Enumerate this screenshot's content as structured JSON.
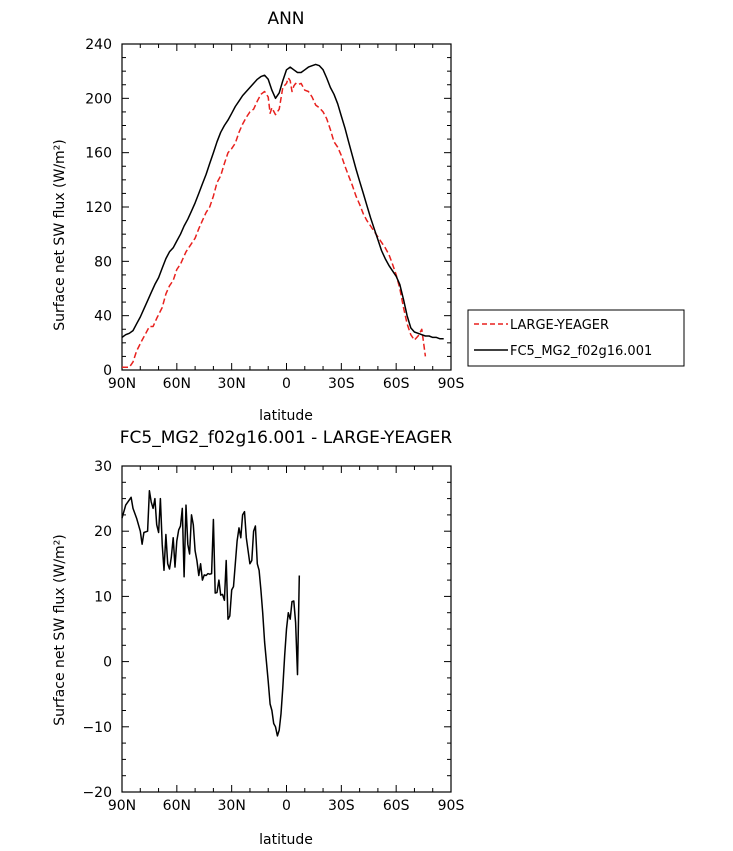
{
  "chart_data": [
    {
      "type": "line",
      "title": "ANN",
      "xlabel": "latitude",
      "ylabel": "Surface net SW flux (W/m²)",
      "xlim": [
        90,
        -90
      ],
      "ylim": [
        0,
        240
      ],
      "xticks": [
        90,
        60,
        30,
        0,
        -30,
        -60,
        -90
      ],
      "xticklabels": [
        "90N",
        "60N",
        "30N",
        "0",
        "30S",
        "60S",
        "90S"
      ],
      "yticks": [
        0,
        40,
        80,
        120,
        160,
        200,
        240
      ],
      "yticklabels": [
        "0",
        "40",
        "80",
        "120",
        "160",
        "200",
        "240"
      ],
      "grid": false,
      "legend": "right",
      "series": [
        {
          "name": "LARGE-YEAGER",
          "color": "#e8211e",
          "dash": "dashed",
          "points": [
            [
              90,
              2
            ],
            [
              86,
              2
            ],
            [
              84,
              6
            ],
            [
              82,
              14
            ],
            [
              79,
              22
            ],
            [
              77,
              27
            ],
            [
              75,
              32
            ],
            [
              73,
              32
            ],
            [
              71,
              38
            ],
            [
              68,
              46
            ],
            [
              66,
              56
            ],
            [
              64,
              62
            ],
            [
              62,
              66
            ],
            [
              60,
              74
            ],
            [
              58,
              78
            ],
            [
              55,
              87
            ],
            [
              53,
              91
            ],
            [
              50,
              97
            ],
            [
              48,
              104
            ],
            [
              46,
              110
            ],
            [
              44,
              116
            ],
            [
              42,
              120
            ],
            [
              40,
              128
            ],
            [
              38,
              138
            ],
            [
              36,
              143
            ],
            [
              34,
              152
            ],
            [
              32,
              160
            ],
            [
              30,
              163
            ],
            [
              28,
              167
            ],
            [
              26,
              175
            ],
            [
              24,
              181
            ],
            [
              22,
              186
            ],
            [
              20,
              190
            ],
            [
              18,
              192
            ],
            [
              16,
              198
            ],
            [
              14,
              203
            ],
            [
              12,
              205
            ],
            [
              10,
              201
            ],
            [
              9,
              189
            ],
            [
              8,
              193
            ],
            [
              6,
              188
            ],
            [
              4,
              192
            ],
            [
              2,
              208
            ],
            [
              0,
              211
            ],
            [
              -1,
              215
            ],
            [
              -2,
              213
            ],
            [
              -3,
              205
            ],
            [
              -4,
              209
            ],
            [
              -5,
              211
            ],
            [
              -6,
              210
            ],
            [
              -8,
              211
            ],
            [
              -10,
              206
            ],
            [
              -12,
              205
            ],
            [
              -14,
              201
            ],
            [
              -16,
              195
            ],
            [
              -18,
              193
            ],
            [
              -20,
              190
            ],
            [
              -22,
              185
            ],
            [
              -24,
              177
            ],
            [
              -26,
              168
            ],
            [
              -28,
              164
            ],
            [
              -30,
              158
            ],
            [
              -32,
              150
            ],
            [
              -34,
              143
            ],
            [
              -36,
              136
            ],
            [
              -38,
              128
            ],
            [
              -40,
              122
            ],
            [
              -42,
              115
            ],
            [
              -44,
              110
            ],
            [
              -46,
              106
            ],
            [
              -48,
              102
            ],
            [
              -50,
              98
            ],
            [
              -52,
              94
            ],
            [
              -54,
              90
            ],
            [
              -56,
              85
            ],
            [
              -58,
              78
            ],
            [
              -60,
              70
            ],
            [
              -62,
              60
            ],
            [
              -64,
              46
            ],
            [
              -66,
              34
            ],
            [
              -68,
              26
            ],
            [
              -70,
              22
            ],
            [
              -72,
              25
            ],
            [
              -74,
              30
            ],
            [
              -75,
              20
            ],
            [
              -76,
              10
            ]
          ]
        },
        {
          "name": "FC5_MG2_f02g16.001",
          "color": "#000000",
          "dash": "solid",
          "points": [
            [
              90,
              24
            ],
            [
              88,
              26
            ],
            [
              86,
              27
            ],
            [
              84,
              29
            ],
            [
              82,
              34
            ],
            [
              80,
              39
            ],
            [
              78,
              45
            ],
            [
              76,
              51
            ],
            [
              74,
              57
            ],
            [
              72,
              63
            ],
            [
              70,
              68
            ],
            [
              68,
              75
            ],
            [
              66,
              82
            ],
            [
              64,
              87
            ],
            [
              62,
              90
            ],
            [
              60,
              95
            ],
            [
              58,
              100
            ],
            [
              56,
              106
            ],
            [
              54,
              111
            ],
            [
              52,
              117
            ],
            [
              50,
              123
            ],
            [
              48,
              130
            ],
            [
              46,
              137
            ],
            [
              44,
              144
            ],
            [
              42,
              152
            ],
            [
              40,
              160
            ],
            [
              38,
              168
            ],
            [
              36,
              175
            ],
            [
              34,
              180
            ],
            [
              32,
              184
            ],
            [
              30,
              189
            ],
            [
              28,
              194
            ],
            [
              26,
              198
            ],
            [
              24,
              202
            ],
            [
              22,
              205
            ],
            [
              20,
              208
            ],
            [
              18,
              211
            ],
            [
              16,
              214
            ],
            [
              14,
              216
            ],
            [
              12,
              217
            ],
            [
              10,
              214
            ],
            [
              8,
              206
            ],
            [
              6,
              200
            ],
            [
              4,
              204
            ],
            [
              2,
              213
            ],
            [
              0,
              221
            ],
            [
              -2,
              223
            ],
            [
              -4,
              221
            ],
            [
              -6,
              219
            ],
            [
              -8,
              219
            ],
            [
              -10,
              221
            ],
            [
              -12,
              223
            ],
            [
              -14,
              224
            ],
            [
              -16,
              225
            ],
            [
              -18,
              224
            ],
            [
              -20,
              221
            ],
            [
              -22,
              215
            ],
            [
              -24,
              208
            ],
            [
              -26,
              203
            ],
            [
              -28,
              196
            ],
            [
              -30,
              187
            ],
            [
              -32,
              178
            ],
            [
              -34,
              168
            ],
            [
              -36,
              158
            ],
            [
              -38,
              148
            ],
            [
              -40,
              139
            ],
            [
              -42,
              130
            ],
            [
              -44,
              121
            ],
            [
              -46,
              112
            ],
            [
              -48,
              104
            ],
            [
              -50,
              96
            ],
            [
              -52,
              88
            ],
            [
              -54,
              82
            ],
            [
              -56,
              77
            ],
            [
              -58,
              73
            ],
            [
              -60,
              69
            ],
            [
              -62,
              63
            ],
            [
              -64,
              52
            ],
            [
              -66,
              40
            ],
            [
              -68,
              31
            ],
            [
              -70,
              28
            ],
            [
              -72,
              27
            ],
            [
              -74,
              26
            ],
            [
              -76,
              25
            ],
            [
              -78,
              25
            ],
            [
              -80,
              24
            ],
            [
              -82,
              24
            ],
            [
              -84,
              23
            ],
            [
              -86,
              23
            ]
          ]
        }
      ]
    },
    {
      "type": "line",
      "title": "FC5_MG2_f02g16.001 - LARGE-YEAGER",
      "xlabel": "latitude",
      "ylabel": "Surface net SW flux (W/m²)",
      "xlim": [
        90,
        -90
      ],
      "ylim": [
        -20,
        30
      ],
      "xticks": [
        90,
        60,
        30,
        0,
        -30,
        -60,
        -90
      ],
      "xticklabels": [
        "90N",
        "60N",
        "30N",
        "0",
        "30S",
        "60S",
        "90S"
      ],
      "yticks": [
        -20,
        -10,
        0,
        10,
        20,
        30
      ],
      "yticklabels": [
        "−20",
        "−10",
        "0",
        "10",
        "20",
        "30"
      ],
      "grid": false,
      "series": [
        {
          "color": "#000000",
          "dash": "solid",
          "points": [
            [
              90,
              22
            ],
            [
              88,
              24
            ],
            [
              86,
              24.8
            ],
            [
              85,
              25.2
            ],
            [
              84,
              23.5
            ],
            [
              82,
              22
            ],
            [
              80,
              20
            ],
            [
              79,
              18
            ],
            [
              78,
              19.8
            ],
            [
              76,
              20
            ],
            [
              75,
              26.2
            ],
            [
              74,
              24.5
            ],
            [
              73,
              23.5
            ],
            [
              72,
              25
            ],
            [
              71,
              21
            ],
            [
              70,
              19.8
            ],
            [
              69,
              25
            ],
            [
              68,
              18
            ],
            [
              67,
              14
            ],
            [
              66,
              19.5
            ],
            [
              65,
              15
            ],
            [
              64,
              14.2
            ],
            [
              63,
              16
            ],
            [
              62,
              19
            ],
            [
              61,
              14.5
            ],
            [
              60,
              18.5
            ],
            [
              59,
              20.2
            ],
            [
              58,
              20.8
            ],
            [
              57,
              23.5
            ],
            [
              56,
              13
            ],
            [
              55,
              24
            ],
            [
              54,
              18
            ],
            [
              53,
              16.5
            ],
            [
              52,
              22.5
            ],
            [
              51,
              21
            ],
            [
              50,
              17
            ],
            [
              49,
              15.5
            ],
            [
              48,
              13.2
            ],
            [
              47,
              15
            ],
            [
              46,
              12.5
            ],
            [
              45,
              13.3
            ],
            [
              44,
              13.2
            ],
            [
              43,
              13.5
            ],
            [
              42,
              13.4
            ],
            [
              41,
              13.5
            ],
            [
              40,
              21.8
            ],
            [
              39,
              10.5
            ],
            [
              38,
              10.6
            ],
            [
              37,
              12.5
            ],
            [
              36,
              10.2
            ],
            [
              35,
              10.3
            ],
            [
              34,
              9.4
            ],
            [
              33,
              15.5
            ],
            [
              32,
              6.5
            ],
            [
              31,
              7
            ],
            [
              30,
              11
            ],
            [
              29,
              11.5
            ],
            [
              28,
              15
            ],
            [
              27,
              18.5
            ],
            [
              26,
              20.5
            ],
            [
              25,
              19
            ],
            [
              24,
              22.5
            ],
            [
              23,
              23
            ],
            [
              22,
              19
            ],
            [
              21,
              17
            ],
            [
              20,
              15
            ],
            [
              19,
              15.5
            ],
            [
              18,
              20
            ],
            [
              17,
              20.8
            ],
            [
              16,
              15
            ],
            [
              15,
              14
            ],
            [
              14,
              11
            ],
            [
              13,
              7.5
            ],
            [
              12,
              3
            ],
            [
              11,
              0
            ],
            [
              10,
              -3
            ],
            [
              9,
              -6.5
            ],
            [
              8,
              -7.5
            ],
            [
              7,
              -9.5
            ],
            [
              6,
              -10
            ],
            [
              5,
              -11.4
            ],
            [
              4,
              -10.5
            ],
            [
              3,
              -8
            ],
            [
              2,
              -4
            ],
            [
              1,
              1
            ],
            [
              0,
              5
            ],
            [
              -1,
              7.5
            ],
            [
              -2,
              6.5
            ],
            [
              -3,
              9.2
            ],
            [
              -4,
              9.3
            ],
            [
              -5,
              6
            ],
            [
              -6,
              -2
            ],
            [
              -7,
              13.2
            ]
          ]
        }
      ]
    }
  ]
}
